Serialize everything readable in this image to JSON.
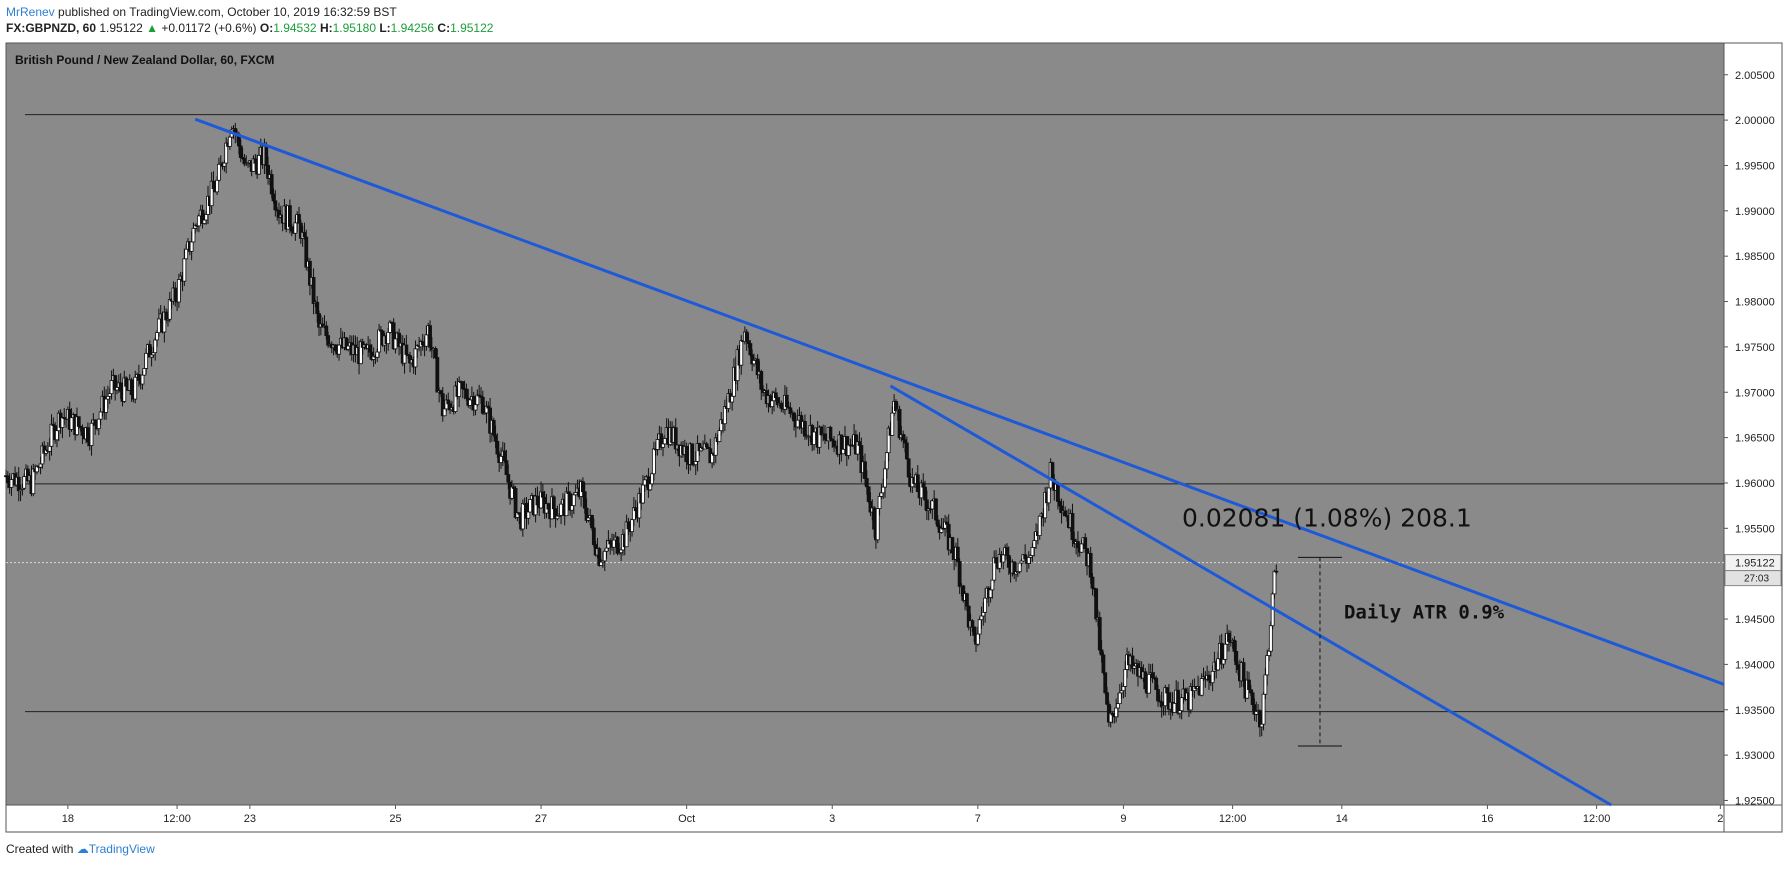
{
  "header": {
    "author": "MrRenev",
    "published": "published on TradingView.com, October 10, 2019 16:32:59 BST",
    "symbol": "FX:GBPNZD, 60",
    "last": "1.95122",
    "change": "+0.01172 (+0.6%)",
    "o_label": "O:",
    "o": "1.94532",
    "h_label": "H:",
    "h": "1.95180",
    "l_label": "L:",
    "l": "1.94256",
    "c_label": "C:",
    "c": "1.95122"
  },
  "footer": {
    "created_with": "Created with",
    "brand": "TradingView"
  },
  "colors": {
    "pane_background": "#8a8a8a",
    "trendline": "#1e5ad8",
    "candle": "#111111",
    "text": "#222222",
    "up_green": "#1a9e3a",
    "brand_blue": "#2e7fd1"
  },
  "chart_data": {
    "type": "candlestick",
    "title": "British Pound / New Zealand Dollar, 60, FXCM",
    "y_range": [
      1.9245,
      2.0085
    ],
    "y_ticks": [
      "2.00500",
      "2.00000",
      "1.99500",
      "1.99000",
      "1.98500",
      "1.98000",
      "1.97500",
      "1.97000",
      "1.96500",
      "1.96000",
      "1.95500",
      "1.95000",
      "1.94500",
      "1.94000",
      "1.93500",
      "1.93000",
      "1.92500"
    ],
    "x_ticks": [
      "18",
      "12:00",
      "23",
      "25",
      "27",
      "Oct",
      "3",
      "7",
      "9",
      "12:00",
      "14",
      "16",
      "12:00",
      "2"
    ],
    "x_tick_index": [
      1,
      2.5,
      3.5,
      5.5,
      7.5,
      9.5,
      11.5,
      13.5,
      15.5,
      17,
      18.5,
      20.5,
      22,
      23.7
    ],
    "x_range": [
      0.15,
      23.75
    ],
    "price_label": {
      "value": "1.95122",
      "countdown": "27:03"
    },
    "horizontal_lines": [
      2.0006,
      1.9599,
      1.9348
    ],
    "trendlines": [
      {
        "from": [
          2.75,
          2.0001
        ],
        "to": [
          23.75,
          1.9378
        ]
      },
      {
        "from": [
          12.3,
          1.9707
        ],
        "to": [
          22.2,
          1.9245
        ]
      }
    ],
    "swing_points": [
      [
        0.15,
        1.9608
      ],
      [
        0.5,
        1.96
      ],
      [
        0.9,
        1.9675
      ],
      [
        1.3,
        1.9655
      ],
      [
        1.6,
        1.9705
      ],
      [
        1.9,
        1.97
      ],
      [
        2.2,
        1.9762
      ],
      [
        2.5,
        1.981
      ],
      [
        2.75,
        1.9885
      ],
      [
        3.05,
        1.993
      ],
      [
        3.25,
        2.0
      ],
      [
        3.45,
        1.9945
      ],
      [
        3.7,
        1.996
      ],
      [
        3.9,
        1.99
      ],
      [
        4.2,
        1.988
      ],
      [
        4.45,
        1.977
      ],
      [
        4.75,
        1.975
      ],
      [
        5.1,
        1.974
      ],
      [
        5.4,
        1.977
      ],
      [
        5.7,
        1.973
      ],
      [
        5.95,
        1.977
      ],
      [
        6.15,
        1.968
      ],
      [
        6.4,
        1.97
      ],
      [
        6.7,
        1.969
      ],
      [
        6.95,
        1.963
      ],
      [
        7.2,
        1.956
      ],
      [
        7.45,
        1.958
      ],
      [
        7.75,
        1.957
      ],
      [
        8.05,
        1.959
      ],
      [
        8.3,
        1.952
      ],
      [
        8.65,
        1.954
      ],
      [
        8.95,
        1.96
      ],
      [
        9.2,
        1.966
      ],
      [
        9.55,
        1.963
      ],
      [
        9.85,
        1.963
      ],
      [
        10.1,
        1.97
      ],
      [
        10.3,
        1.977
      ],
      [
        10.55,
        1.97
      ],
      [
        10.9,
        1.968
      ],
      [
        11.3,
        1.965
      ],
      [
        11.6,
        1.9645
      ],
      [
        11.85,
        1.964
      ],
      [
        12.1,
        1.955
      ],
      [
        12.35,
        1.969
      ],
      [
        12.6,
        1.96
      ],
      [
        12.9,
        1.957
      ],
      [
        13.2,
        1.952
      ],
      [
        13.45,
        1.942
      ],
      [
        13.75,
        1.952
      ],
      [
        14.0,
        1.951
      ],
      [
        14.25,
        1.952
      ],
      [
        14.5,
        1.961
      ],
      [
        14.8,
        1.955
      ],
      [
        15.05,
        1.951
      ],
      [
        15.3,
        1.933
      ],
      [
        15.55,
        1.94
      ],
      [
        15.85,
        1.938
      ],
      [
        16.1,
        1.936
      ],
      [
        16.4,
        1.936
      ],
      [
        16.7,
        1.939
      ],
      [
        16.95,
        1.943
      ],
      [
        17.2,
        1.937
      ],
      [
        17.4,
        1.934
      ],
      [
        17.55,
        1.947
      ],
      [
        17.6,
        1.9512
      ]
    ],
    "measure": {
      "x": 18.2,
      "top": 1.9518,
      "bottom": 1.931,
      "label": "0.02081 (1.08%) 208.1",
      "atr_label": "Daily ATR 0.9%"
    }
  }
}
